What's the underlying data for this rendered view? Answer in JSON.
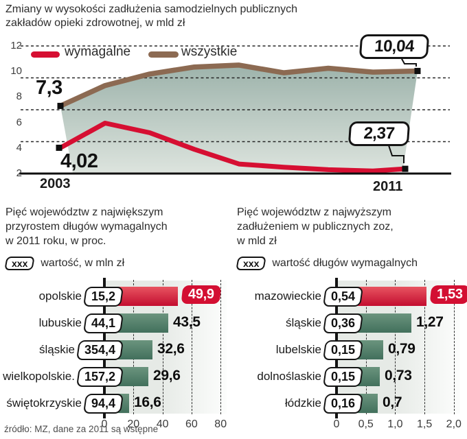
{
  "title": "Zmiany w wysokości zadłużenia samodzielnych publicznych zakładów opieki zdrowotnej, w mld zł",
  "source": "źródło: MZ, dane za 2011 są wstępne",
  "colors": {
    "red": "#d60f32",
    "red_bar_light": "#e85461",
    "red_bar_dark": "#c30d2f",
    "red_pill": "#d30f32",
    "brown": "#8c6a52",
    "fill_top": "#9db3ab",
    "fill_bottom": "#dde4de",
    "green_bar_light": "#6b947e",
    "green_bar_dark": "#42705c",
    "plot_bg_left": "#e6eae6",
    "plot_bg_right": "#fcfdfc"
  },
  "chart_data": [
    {
      "type": "line",
      "title": "Zmiany w wysokości zadłużenia samodzielnych publicznych zakładów opieki zdrowotnej, w mld zł",
      "x": [
        2003,
        2004,
        2005,
        2006,
        2007,
        2008,
        2009,
        2010,
        2011
      ],
      "x_axis_labels": [
        "2003",
        "2011"
      ],
      "ylim": [
        2,
        12
      ],
      "yticks": [
        12,
        10,
        8,
        6,
        4,
        2
      ],
      "grid": "dashed-horizontal",
      "legend_position": "top-left-inside",
      "series": [
        {
          "name": "wymagalne",
          "color": "#d60f32",
          "values": [
            4.02,
            5.95,
            5.2,
            3.9,
            2.75,
            2.5,
            2.3,
            2.2,
            2.37
          ],
          "start_label": "4,02",
          "end_label": "2,37"
        },
        {
          "name": "wszystkie",
          "color": "#8c6a52",
          "area_fill": "teal-gradient",
          "values": [
            7.3,
            8.9,
            9.8,
            10.35,
            10.5,
            9.9,
            10.25,
            9.95,
            10.04
          ],
          "start_label": "7,3",
          "end_label": "10,04"
        }
      ]
    },
    {
      "type": "bar",
      "title": "Pięć województw z największym\nprzyrostem długów wymagalnych\nw 2011 roku, w proc.",
      "legend_tag": "xxx",
      "legend": "wartość, w mln zł",
      "categories": [
        "opolskie",
        "lubuskie",
        "śląskie",
        "wielkopolskie.",
        "świętokrzyskie"
      ],
      "values": [
        49.9,
        43.5,
        32.6,
        29.6,
        16.6
      ],
      "value_labels": [
        "49,9",
        "43,5",
        "32,6",
        "29,6",
        "16,6"
      ],
      "tag_values": [
        "15,2",
        "44,1",
        "354,4",
        "157,2",
        "94,4"
      ],
      "xticks": [
        "0",
        "20",
        "40",
        "60",
        "80"
      ],
      "xtick_values": [
        0,
        20,
        40,
        60,
        80
      ],
      "xlim": [
        0,
        85
      ],
      "highlight_index": 0
    },
    {
      "type": "bar",
      "title": "Pięć województw z najwyższym\nzadłużeniem w publicznych zoz,\nw mld zł",
      "legend_tag": "xxx",
      "legend": "wartość długów wymagalnych",
      "categories": [
        "mazowieckie",
        "śląskie",
        "lubelskie",
        "dolnoślaskie",
        "łódzkie"
      ],
      "values": [
        1.53,
        1.27,
        0.79,
        0.73,
        0.7
      ],
      "value_labels": [
        "1,53",
        "1,27",
        "0,79",
        "0,73",
        "0,7"
      ],
      "tag_values": [
        "0,54",
        "0,36",
        "0,15",
        "0,15",
        "0,16"
      ],
      "xticks": [
        "0",
        "0,5",
        "1,0",
        "1,5",
        "2,0"
      ],
      "xtick_values": [
        0,
        0.5,
        1.0,
        1.5,
        2.0
      ],
      "xlim": [
        0,
        2.2
      ],
      "highlight_index": 0
    }
  ]
}
